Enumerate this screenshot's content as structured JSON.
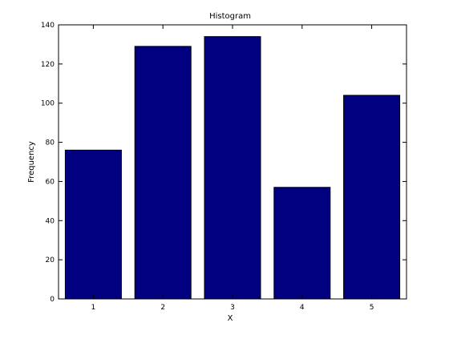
{
  "chart_data": {
    "type": "bar",
    "title": "Histogram",
    "xlabel": "X",
    "ylabel": "Frequency",
    "categories": [
      "1",
      "2",
      "3",
      "4",
      "5"
    ],
    "values": [
      76,
      129,
      134,
      57,
      104
    ],
    "ylim": [
      0,
      140
    ],
    "yticks": [
      0,
      20,
      40,
      60,
      80,
      100,
      120,
      140
    ],
    "grid": false,
    "legend": "none",
    "bar_color": "#000080",
    "bar_edge_color": "#000000",
    "axis_color": "#000000",
    "background_color": "#ffffff"
  }
}
